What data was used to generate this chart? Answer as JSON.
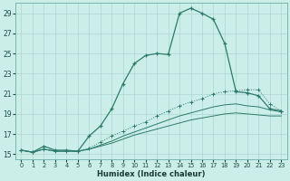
{
  "xlabel": "Humidex (Indice chaleur)",
  "bg_color": "#cceee8",
  "grid_color": "#aad8d0",
  "line_color": "#2d7a6e",
  "xlim_min": -0.5,
  "xlim_max": 23.5,
  "ylim_min": 14.5,
  "ylim_max": 30.0,
  "xticks": [
    0,
    1,
    2,
    3,
    4,
    5,
    6,
    7,
    8,
    9,
    10,
    11,
    12,
    13,
    14,
    15,
    16,
    17,
    18,
    19,
    20,
    21,
    22,
    23
  ],
  "yticks": [
    15,
    17,
    19,
    21,
    23,
    25,
    27,
    29
  ],
  "s1_x": [
    0,
    1,
    2,
    3,
    4,
    5,
    6,
    7,
    8,
    9,
    10,
    11,
    12,
    13,
    14,
    15,
    16,
    17,
    18,
    19,
    20,
    21,
    22,
    23
  ],
  "s1_y": [
    15.4,
    15.2,
    15.8,
    15.4,
    15.4,
    15.3,
    16.8,
    17.8,
    19.5,
    22.0,
    24.0,
    24.8,
    25.0,
    24.9,
    29.0,
    29.5,
    29.0,
    28.4,
    26.0,
    21.2,
    21.1,
    20.8,
    19.5,
    19.3
  ],
  "s2_x": [
    0,
    1,
    2,
    3,
    4,
    5,
    6,
    7,
    8,
    9,
    10,
    11,
    12,
    13,
    14,
    15,
    16,
    17,
    18,
    19,
    20,
    21,
    22,
    23
  ],
  "s2_y": [
    15.4,
    15.2,
    15.5,
    15.3,
    15.3,
    15.3,
    15.6,
    16.2,
    16.8,
    17.3,
    17.8,
    18.2,
    18.8,
    19.3,
    19.8,
    20.2,
    20.5,
    21.0,
    21.2,
    21.3,
    21.4,
    21.4,
    20.0,
    19.3
  ],
  "s3_x": [
    0,
    1,
    2,
    3,
    4,
    5,
    6,
    7,
    8,
    9,
    10,
    11,
    12,
    13,
    14,
    15,
    16,
    17,
    18,
    19,
    20,
    21,
    22,
    23
  ],
  "s3_y": [
    15.4,
    15.2,
    15.5,
    15.3,
    15.3,
    15.3,
    15.5,
    15.9,
    16.3,
    16.8,
    17.2,
    17.6,
    18.0,
    18.4,
    18.8,
    19.1,
    19.4,
    19.7,
    19.9,
    20.0,
    19.8,
    19.7,
    19.4,
    19.2
  ],
  "s4_x": [
    0,
    1,
    2,
    3,
    4,
    5,
    6,
    7,
    8,
    9,
    10,
    11,
    12,
    13,
    14,
    15,
    16,
    17,
    18,
    19,
    20,
    21,
    22,
    23
  ],
  "s4_y": [
    15.4,
    15.2,
    15.5,
    15.3,
    15.3,
    15.3,
    15.5,
    15.8,
    16.1,
    16.5,
    16.9,
    17.2,
    17.5,
    17.8,
    18.1,
    18.4,
    18.6,
    18.8,
    19.0,
    19.1,
    19.0,
    18.9,
    18.8,
    18.8
  ]
}
